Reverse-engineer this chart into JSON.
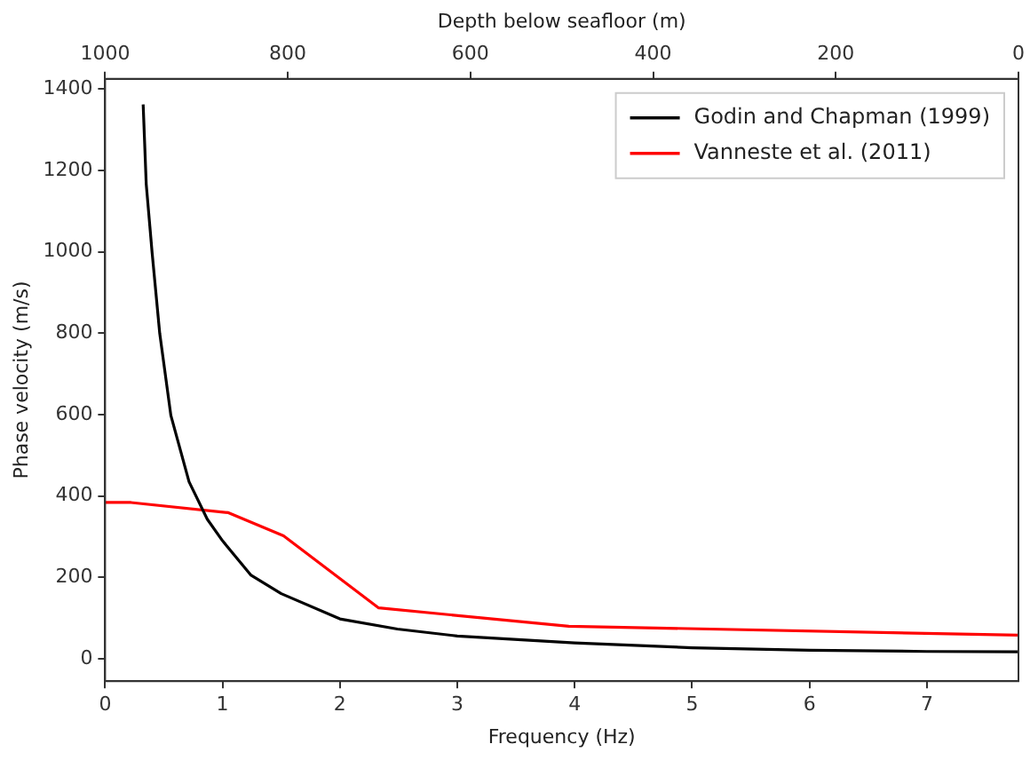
{
  "chart_data": {
    "type": "line",
    "xlabel": "Frequency (Hz)",
    "ylabel": "Phase velocity (m/s)",
    "x2label": "Depth below seafloor (m)",
    "xlim": [
      0,
      7.78
    ],
    "xticks": [
      0,
      1,
      2,
      3,
      4,
      5,
      6,
      7
    ],
    "x2lim": [
      1000,
      0
    ],
    "x2ticks": [
      1000,
      800,
      600,
      400,
      200,
      0
    ],
    "ylim": [
      -55,
      1425
    ],
    "yticks": [
      0,
      200,
      400,
      600,
      800,
      1000,
      1200,
      1400
    ],
    "grid": false,
    "legend": "top right",
    "marker": "none",
    "line_style": "solid",
    "series": [
      {
        "name": "Godin and Chapman (1999)",
        "color": "#000000",
        "x": [
          0.324,
          0.35,
          0.4,
          0.465,
          0.56,
          0.715,
          0.87,
          1.0,
          1.24,
          1.5,
          2.0,
          2.49,
          3.0,
          4.0,
          5.0,
          6.0,
          7.0,
          7.78
        ],
        "values": [
          1362,
          1167,
          999,
          800,
          598,
          435,
          343,
          290,
          206,
          160,
          98,
          73,
          56,
          39,
          27,
          21,
          18,
          17
        ]
      },
      {
        "name": "Vanneste et al. (2011)",
        "color": "#ff0000",
        "x": [
          0,
          0.22,
          1.05,
          1.52,
          2.33,
          3.95,
          7.78
        ],
        "values": [
          384,
          384,
          359,
          302,
          125,
          80,
          58
        ]
      }
    ]
  }
}
